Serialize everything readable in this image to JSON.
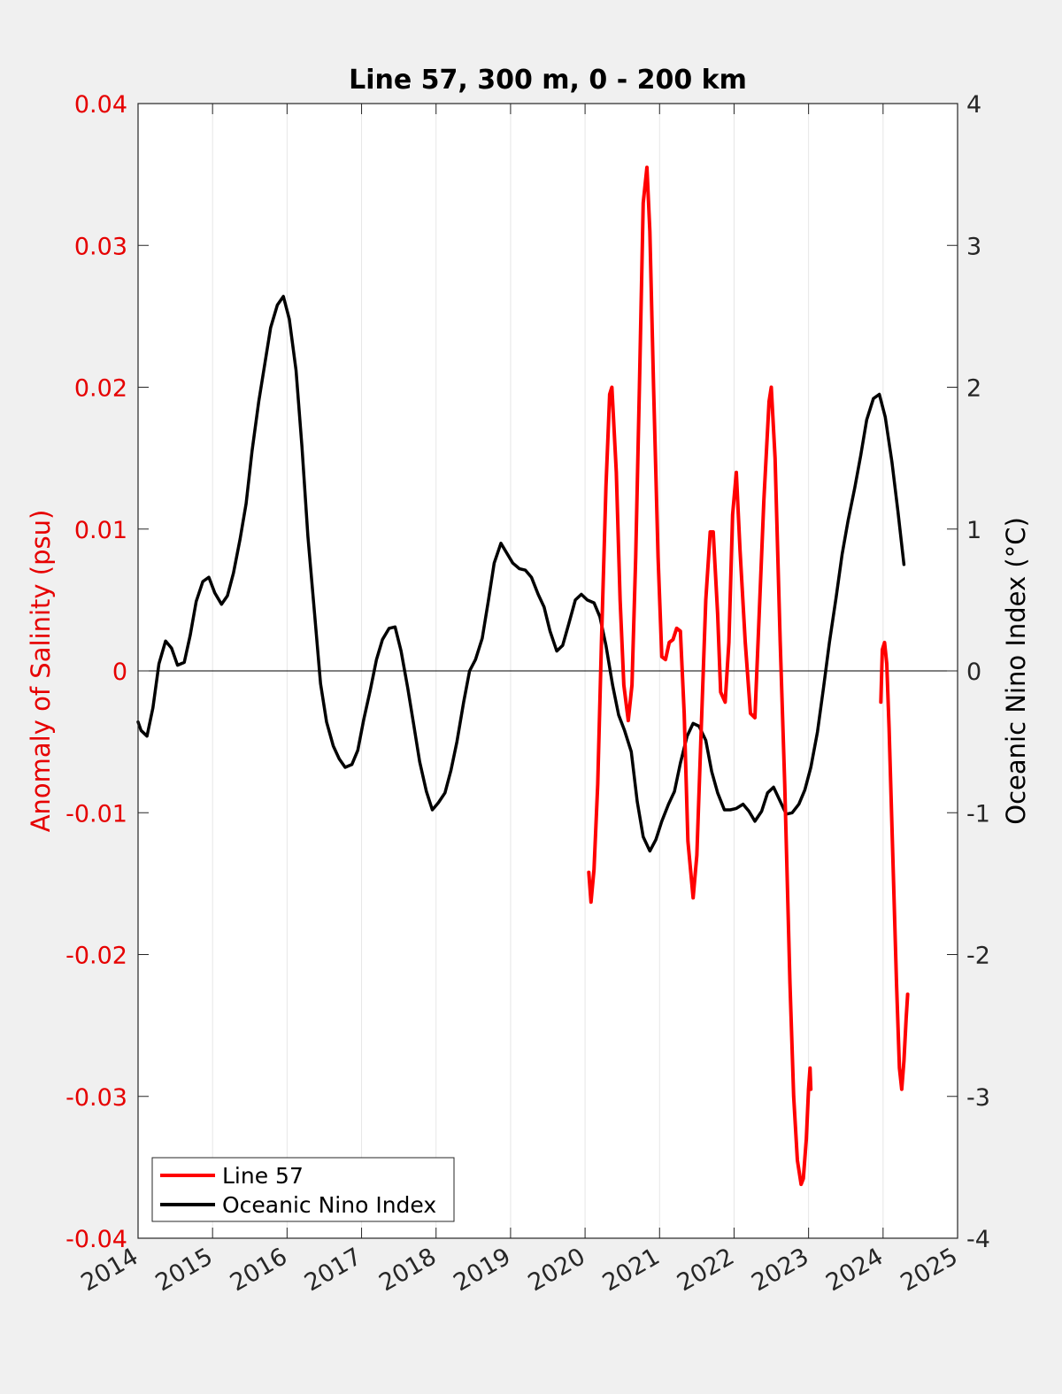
{
  "chart_data": {
    "type": "line",
    "title": "Line 57, 300 m, 0 - 200 km",
    "xlabel": "",
    "ylabel_left": "Anomaly of Salinity (psu)",
    "ylabel_right": "Oceanic Nino Index (°C)",
    "xlim": [
      2014,
      2025
    ],
    "ylim_left": [
      -0.04,
      0.04
    ],
    "ylim_right": [
      -4,
      4
    ],
    "x_ticks": [
      "2014",
      "2015",
      "2016",
      "2017",
      "2018",
      "2019",
      "2020",
      "2021",
      "2022",
      "2023",
      "2024",
      "2025"
    ],
    "y_left_ticks": [
      "-0.04",
      "-0.03",
      "-0.02",
      "-0.01",
      "0",
      "0.01",
      "0.02",
      "0.03",
      "0.04"
    ],
    "y_right_ticks": [
      "-4",
      "-3",
      "-2",
      "-1",
      "0",
      "1",
      "2",
      "3",
      "4"
    ],
    "grid": "vertical",
    "zero_line": true,
    "legend_position": "bottom-left",
    "colors": {
      "left_axis": "#e60000",
      "right_axis": "#000000",
      "line57": "#ff0000",
      "oni": "#000000",
      "background": "#f0f0f0",
      "plot_area": "#ffffff"
    },
    "series": [
      {
        "name": "Line 57",
        "axis": "left",
        "segments": [
          [
            [
              2020.05,
              -0.0142
            ],
            [
              2020.08,
              -0.0163
            ],
            [
              2020.12,
              -0.014
            ],
            [
              2020.17,
              -0.008
            ],
            [
              2020.22,
              0.002
            ],
            [
              2020.28,
              0.013
            ],
            [
              2020.33,
              0.0195
            ],
            [
              2020.36,
              0.02
            ],
            [
              2020.42,
              0.014
            ],
            [
              2020.47,
              0.005
            ],
            [
              2020.52,
              -0.001
            ],
            [
              2020.58,
              -0.0035
            ],
            [
              2020.63,
              -0.001
            ],
            [
              2020.68,
              0.008
            ],
            [
              2020.73,
              0.02
            ],
            [
              2020.78,
              0.033
            ],
            [
              2020.83,
              0.0355
            ],
            [
              2020.87,
              0.031
            ],
            [
              2020.92,
              0.02
            ],
            [
              2020.98,
              0.008
            ],
            [
              2021.03,
              0.001
            ],
            [
              2021.08,
              0.0008
            ],
            [
              2021.13,
              0.002
            ],
            [
              2021.18,
              0.0022
            ],
            [
              2021.23,
              0.003
            ],
            [
              2021.28,
              0.0028
            ],
            [
              2021.33,
              -0.003
            ],
            [
              2021.38,
              -0.012
            ],
            [
              2021.45,
              -0.016
            ],
            [
              2021.5,
              -0.013
            ],
            [
              2021.56,
              -0.004
            ],
            [
              2021.62,
              0.005
            ],
            [
              2021.68,
              0.0098
            ],
            [
              2021.72,
              0.0098
            ],
            [
              2021.78,
              0.004
            ],
            [
              2021.82,
              -0.0015
            ],
            [
              2021.88,
              -0.0022
            ],
            [
              2021.93,
              0.002
            ],
            [
              2021.98,
              0.011
            ],
            [
              2022.03,
              0.014
            ],
            [
              2022.08,
              0.0085
            ],
            [
              2022.15,
              0.002
            ],
            [
              2022.22,
              -0.003
            ],
            [
              2022.28,
              -0.0033
            ],
            [
              2022.33,
              0.003
            ],
            [
              2022.4,
              0.012
            ],
            [
              2022.47,
              0.019
            ],
            [
              2022.5,
              0.02
            ],
            [
              2022.55,
              0.015
            ],
            [
              2022.62,
              0.002
            ],
            [
              2022.68,
              -0.008
            ],
            [
              2022.75,
              -0.022
            ],
            [
              2022.8,
              -0.03
            ],
            [
              2022.85,
              -0.0345
            ],
            [
              2022.9,
              -0.0362
            ],
            [
              2022.93,
              -0.0358
            ],
            [
              2022.97,
              -0.033
            ],
            [
              2023.0,
              -0.0295
            ],
            [
              2023.02,
              -0.028
            ],
            [
              2023.03,
              -0.0295
            ]
          ],
          [
            [
              2023.97,
              -0.0022
            ],
            [
              2023.99,
              0.0015
            ],
            [
              2024.02,
              0.002
            ],
            [
              2024.05,
              0.0005
            ],
            [
              2024.08,
              -0.004
            ],
            [
              2024.13,
              -0.013
            ],
            [
              2024.18,
              -0.022
            ],
            [
              2024.22,
              -0.028
            ],
            [
              2024.25,
              -0.0295
            ],
            [
              2024.28,
              -0.0275
            ],
            [
              2024.31,
              -0.0245
            ],
            [
              2024.33,
              -0.0228
            ]
          ]
        ]
      },
      {
        "name": "Oceanic Nino Index",
        "axis": "right",
        "points": [
          [
            2014.0,
            -0.36
          ],
          [
            2014.04,
            -0.42
          ],
          [
            2014.12,
            -0.46
          ],
          [
            2014.2,
            -0.26
          ],
          [
            2014.28,
            0.05
          ],
          [
            2014.37,
            0.21
          ],
          [
            2014.45,
            0.16
          ],
          [
            2014.53,
            0.04
          ],
          [
            2014.62,
            0.06
          ],
          [
            2014.7,
            0.25
          ],
          [
            2014.78,
            0.49
          ],
          [
            2014.87,
            0.63
          ],
          [
            2014.95,
            0.66
          ],
          [
            2015.03,
            0.55
          ],
          [
            2015.12,
            0.47
          ],
          [
            2015.2,
            0.53
          ],
          [
            2015.28,
            0.69
          ],
          [
            2015.37,
            0.93
          ],
          [
            2015.45,
            1.18
          ],
          [
            2015.53,
            1.55
          ],
          [
            2015.62,
            1.9
          ],
          [
            2015.7,
            2.16
          ],
          [
            2015.78,
            2.42
          ],
          [
            2015.87,
            2.58
          ],
          [
            2015.95,
            2.64
          ],
          [
            2016.03,
            2.48
          ],
          [
            2016.12,
            2.12
          ],
          [
            2016.2,
            1.58
          ],
          [
            2016.28,
            0.95
          ],
          [
            2016.37,
            0.4
          ],
          [
            2016.45,
            -0.09
          ],
          [
            2016.53,
            -0.36
          ],
          [
            2016.62,
            -0.53
          ],
          [
            2016.7,
            -0.62
          ],
          [
            2016.78,
            -0.68
          ],
          [
            2016.87,
            -0.66
          ],
          [
            2016.95,
            -0.56
          ],
          [
            2017.03,
            -0.34
          ],
          [
            2017.12,
            -0.13
          ],
          [
            2017.2,
            0.08
          ],
          [
            2017.28,
            0.22
          ],
          [
            2017.37,
            0.3
          ],
          [
            2017.45,
            0.31
          ],
          [
            2017.53,
            0.14
          ],
          [
            2017.62,
            -0.12
          ],
          [
            2017.7,
            -0.38
          ],
          [
            2017.78,
            -0.64
          ],
          [
            2017.87,
            -0.85
          ],
          [
            2017.95,
            -0.98
          ],
          [
            2018.03,
            -0.93
          ],
          [
            2018.12,
            -0.86
          ],
          [
            2018.2,
            -0.7
          ],
          [
            2018.28,
            -0.5
          ],
          [
            2018.37,
            -0.22
          ],
          [
            2018.45,
            0.0
          ],
          [
            2018.53,
            0.08
          ],
          [
            2018.62,
            0.23
          ],
          [
            2018.7,
            0.49
          ],
          [
            2018.78,
            0.76
          ],
          [
            2018.87,
            0.9
          ],
          [
            2018.95,
            0.83
          ],
          [
            2019.03,
            0.76
          ],
          [
            2019.12,
            0.72
          ],
          [
            2019.2,
            0.71
          ],
          [
            2019.28,
            0.66
          ],
          [
            2019.37,
            0.54
          ],
          [
            2019.45,
            0.45
          ],
          [
            2019.53,
            0.28
          ],
          [
            2019.62,
            0.14
          ],
          [
            2019.7,
            0.18
          ],
          [
            2019.78,
            0.33
          ],
          [
            2019.87,
            0.5
          ],
          [
            2019.95,
            0.54
          ],
          [
            2020.03,
            0.5
          ],
          [
            2020.12,
            0.48
          ],
          [
            2020.2,
            0.38
          ],
          [
            2020.28,
            0.18
          ],
          [
            2020.37,
            -0.1
          ],
          [
            2020.45,
            -0.31
          ],
          [
            2020.53,
            -0.42
          ],
          [
            2020.62,
            -0.57
          ],
          [
            2020.7,
            -0.92
          ],
          [
            2020.78,
            -1.17
          ],
          [
            2020.87,
            -1.27
          ],
          [
            2020.95,
            -1.19
          ],
          [
            2021.03,
            -1.06
          ],
          [
            2021.12,
            -0.94
          ],
          [
            2021.2,
            -0.85
          ],
          [
            2021.28,
            -0.65
          ],
          [
            2021.37,
            -0.46
          ],
          [
            2021.45,
            -0.37
          ],
          [
            2021.53,
            -0.39
          ],
          [
            2021.62,
            -0.49
          ],
          [
            2021.7,
            -0.71
          ],
          [
            2021.78,
            -0.86
          ],
          [
            2021.87,
            -0.98
          ],
          [
            2021.95,
            -0.98
          ],
          [
            2022.03,
            -0.97
          ],
          [
            2022.12,
            -0.94
          ],
          [
            2022.2,
            -0.99
          ],
          [
            2022.28,
            -1.06
          ],
          [
            2022.37,
            -0.99
          ],
          [
            2022.45,
            -0.86
          ],
          [
            2022.53,
            -0.82
          ],
          [
            2022.62,
            -0.92
          ],
          [
            2022.7,
            -1.01
          ],
          [
            2022.78,
            -1.0
          ],
          [
            2022.87,
            -0.94
          ],
          [
            2022.95,
            -0.84
          ],
          [
            2023.03,
            -0.68
          ],
          [
            2023.12,
            -0.43
          ],
          [
            2023.2,
            -0.12
          ],
          [
            2023.28,
            0.2
          ],
          [
            2023.37,
            0.52
          ],
          [
            2023.45,
            0.82
          ],
          [
            2023.53,
            1.06
          ],
          [
            2023.62,
            1.29
          ],
          [
            2023.7,
            1.52
          ],
          [
            2023.78,
            1.77
          ],
          [
            2023.87,
            1.92
          ],
          [
            2023.95,
            1.95
          ],
          [
            2024.03,
            1.79
          ],
          [
            2024.12,
            1.47
          ],
          [
            2024.2,
            1.12
          ],
          [
            2024.28,
            0.75
          ]
        ]
      }
    ]
  }
}
